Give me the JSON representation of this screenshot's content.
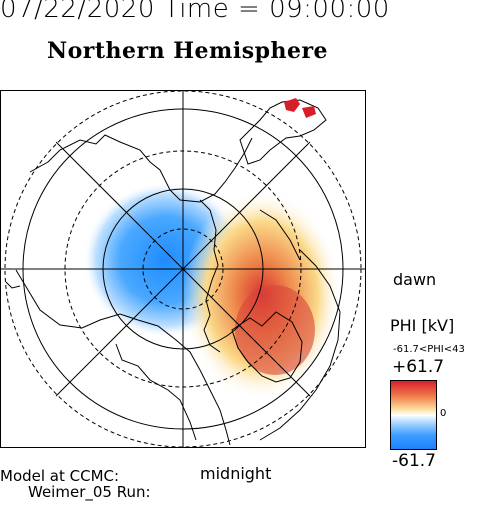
{
  "header": {
    "datetime": "07/22/2020 Time = 09:00:00"
  },
  "map": {
    "title": "Northern Hemisphere",
    "labels": {
      "dawn": "dawn",
      "midnight": "midnight"
    }
  },
  "colorbar": {
    "title": "PHI [kV]",
    "range_text": "-61.7<PHI<43",
    "max_label": "+61.7",
    "mid_label": "0",
    "min_label": "-61.7",
    "colors": {
      "positive": "#e0202a",
      "neutral": "#ffffff",
      "negative": "#1e8cff"
    }
  },
  "footer": {
    "line1": "Model at CCMC:",
    "line2": "Weimer_05 Run:"
  }
}
